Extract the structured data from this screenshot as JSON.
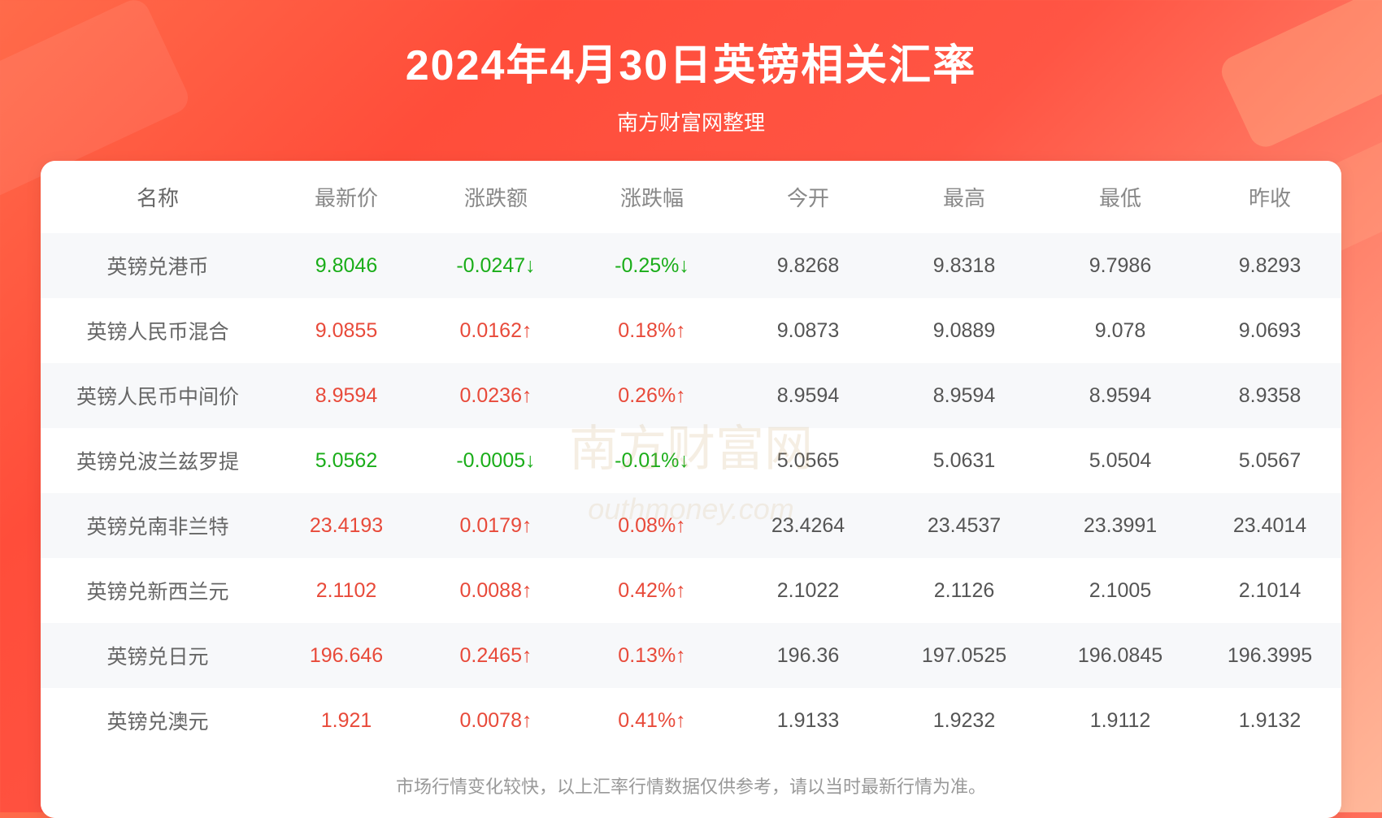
{
  "header": {
    "title": "2024年4月30日英镑相关汇率",
    "subtitle": "南方财富网整理"
  },
  "watermark": {
    "main": "南方财富网",
    "sub": "outhmoney.com"
  },
  "table": {
    "columns": [
      "名称",
      "最新价",
      "涨跌额",
      "涨跌幅",
      "今开",
      "最高",
      "最低",
      "昨收"
    ],
    "rows": [
      {
        "name": "英镑兑港币",
        "price": "9.8046",
        "change": "-0.0247↓",
        "pct": "-0.25%↓",
        "open": "9.8268",
        "high": "9.8318",
        "low": "9.7986",
        "prev": "9.8293",
        "direction": "down"
      },
      {
        "name": "英镑人民币混合",
        "price": "9.0855",
        "change": "0.0162↑",
        "pct": "0.18%↑",
        "open": "9.0873",
        "high": "9.0889",
        "low": "9.078",
        "prev": "9.0693",
        "direction": "up"
      },
      {
        "name": "英镑人民币中间价",
        "price": "8.9594",
        "change": "0.0236↑",
        "pct": "0.26%↑",
        "open": "8.9594",
        "high": "8.9594",
        "low": "8.9594",
        "prev": "8.9358",
        "direction": "up"
      },
      {
        "name": "英镑兑波兰兹罗提",
        "price": "5.0562",
        "change": "-0.0005↓",
        "pct": "-0.01%↓",
        "open": "5.0565",
        "high": "5.0631",
        "low": "5.0504",
        "prev": "5.0567",
        "direction": "down"
      },
      {
        "name": "英镑兑南非兰特",
        "price": "23.4193",
        "change": "0.0179↑",
        "pct": "0.08%↑",
        "open": "23.4264",
        "high": "23.4537",
        "low": "23.3991",
        "prev": "23.4014",
        "direction": "up"
      },
      {
        "name": "英镑兑新西兰元",
        "price": "2.1102",
        "change": "0.0088↑",
        "pct": "0.42%↑",
        "open": "2.1022",
        "high": "2.1126",
        "low": "2.1005",
        "prev": "2.1014",
        "direction": "up"
      },
      {
        "name": "英镑兑日元",
        "price": "196.646",
        "change": "0.2465↑",
        "pct": "0.13%↑",
        "open": "196.36",
        "high": "197.0525",
        "low": "196.0845",
        "prev": "196.3995",
        "direction": "up"
      },
      {
        "name": "英镑兑澳元",
        "price": "1.921",
        "change": "0.0078↑",
        "pct": "0.41%↑",
        "open": "1.9133",
        "high": "1.9232",
        "low": "1.9112",
        "prev": "1.9132",
        "direction": "up"
      }
    ]
  },
  "footer": {
    "disclaimer": "市场行情变化较快，以上汇率行情数据仅供参考，请以当时最新行情为准。"
  },
  "styling": {
    "background_gradient": [
      "#ff6b4a",
      "#ff4d3a",
      "#ff5544",
      "#ffb89a"
    ],
    "title_color": "#ffffff",
    "title_fontsize": 52,
    "subtitle_fontsize": 26,
    "table_bg": "#ffffff",
    "table_border_radius": 18,
    "header_text_color": "#888888",
    "header_fontsize": 26,
    "cell_fontsize": 25,
    "cell_text_color": "#555555",
    "row_odd_bg": "#f7f8fa",
    "row_even_bg": "#ffffff",
    "up_color": "#e84a3a",
    "down_color": "#1aad19",
    "footer_color": "#999999",
    "footer_fontsize": 22,
    "watermark_color": "rgba(200,160,100,0.18)"
  }
}
